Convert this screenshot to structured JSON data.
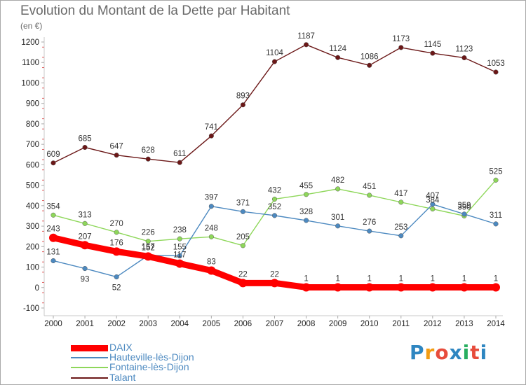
{
  "title": "Evolution du Montant de la Dette par Habitant",
  "subtitle": "(en €)",
  "chart_data": {
    "type": "line",
    "title": "Evolution du Montant de la Dette par Habitant",
    "ylabel": "(en €)",
    "x": [
      "2000",
      "2001",
      "2002",
      "2003",
      "2004",
      "2005",
      "2006",
      "2007",
      "2008",
      "2009",
      "2010",
      "2011",
      "2012",
      "2013",
      "2014"
    ],
    "ylim": [
      -100,
      1200
    ],
    "yticks": [
      -100,
      0,
      100,
      200,
      300,
      400,
      500,
      600,
      700,
      800,
      900,
      1000,
      1100,
      1200
    ],
    "grid": false,
    "legend_position": "bottom",
    "series": [
      {
        "name": "DAIX",
        "color": "#ff0000",
        "values": [
          243,
          207,
          176,
          152,
          117,
          83,
          22,
          22,
          1,
          1,
          1,
          1,
          1,
          1,
          1
        ]
      },
      {
        "name": "Hauteville-lès-Dijon",
        "color": "#4c89c0",
        "values": [
          131,
          93,
          52,
          157,
          155,
          397,
          371,
          352,
          328,
          301,
          276,
          253,
          407,
          359,
          311
        ]
      },
      {
        "name": "Fontaine-lès-Dijon",
        "color": "#8ed75a",
        "values": [
          354,
          313,
          270,
          226,
          238,
          248,
          205,
          432,
          455,
          482,
          451,
          417,
          384,
          350,
          525
        ]
      },
      {
        "name": "Talant",
        "color": "#6b1717",
        "values": [
          609,
          685,
          647,
          628,
          611,
          741,
          893,
          1104,
          1187,
          1124,
          1086,
          1173,
          1145,
          1123,
          1053
        ]
      }
    ]
  },
  "legend": [
    {
      "label": "DAIX",
      "color": "#ff0000"
    },
    {
      "label": "Hauteville-lès-Dijon",
      "color": "#4c89c0"
    },
    {
      "label": "Fontaine-lès-Dijon",
      "color": "#8ed75a"
    },
    {
      "label": "Talant",
      "color": "#6b1717"
    }
  ],
  "logo": {
    "letters": [
      "P",
      "r",
      "o",
      "x",
      "i",
      "t",
      "i"
    ],
    "colors": [
      "#2e86c1",
      "#f39c12",
      "#e74c3c",
      "#2e86c1",
      "#27ae60",
      "#e74c3c",
      "#2e86c1"
    ]
  }
}
